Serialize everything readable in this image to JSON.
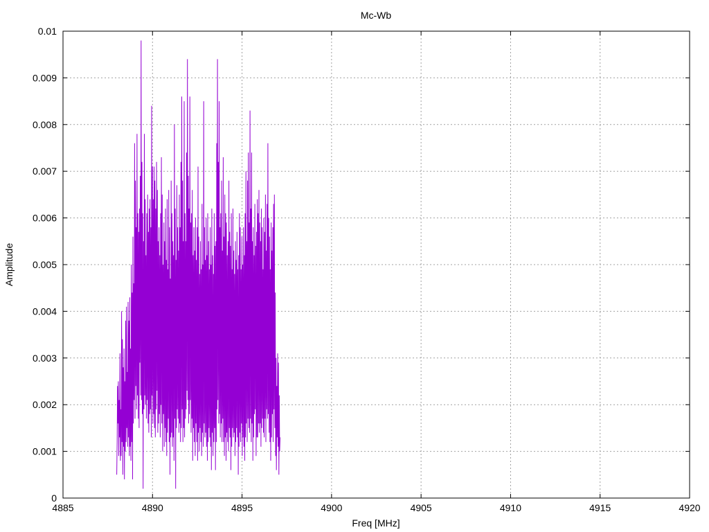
{
  "chart_data": {
    "type": "line",
    "title": "Mc-Wb",
    "xlabel": "Freq [MHz]",
    "ylabel": "Amplitude",
    "xlim": [
      4885,
      4920
    ],
    "ylim": [
      0,
      0.01
    ],
    "grid": true,
    "x_ticks": [
      "4885",
      "4890",
      "4895",
      "4900",
      "4905",
      "4910",
      "4915",
      "4920"
    ],
    "y_ticks": [
      "0",
      "0.001",
      "0.002",
      "0.003",
      "0.004",
      "0.005",
      "0.006",
      "0.007",
      "0.008",
      "0.009",
      "0.01"
    ],
    "series": [
      {
        "color": "#9400d3",
        "x_start": 4888.0,
        "x_step": 0.0227,
        "values": [
          0.0005,
          0.0012,
          0.0024,
          0.0016,
          0.0025,
          0.0009,
          0.0021,
          0.0013,
          0.0031,
          0.0008,
          0.0019,
          0.0009,
          0.004,
          0.0012,
          0.0034,
          0.0005,
          0.0028,
          0.0011,
          0.0032,
          0.0004,
          0.0025,
          0.001,
          0.0038,
          0.0012,
          0.0041,
          0.0015,
          0.0027,
          0.0011,
          0.0042,
          0.0013,
          0.0038,
          0.0009,
          0.0043,
          0.0011,
          0.0032,
          0.0008,
          0.005,
          0.0012,
          0.0044,
          0.0004,
          0.0056,
          0.0016,
          0.0046,
          0.0021,
          0.0076,
          0.0017,
          0.0068,
          0.0024,
          0.0058,
          0.0019,
          0.0078,
          0.0022,
          0.0061,
          0.0017,
          0.0057,
          0.0015,
          0.0062,
          0.0029,
          0.0069,
          0.0022,
          0.0098,
          0.0021,
          0.0072,
          0.0018,
          0.0061,
          0.0002,
          0.0055,
          0.0019,
          0.0078,
          0.0022,
          0.0064,
          0.002,
          0.0052,
          0.0017,
          0.0061,
          0.0021,
          0.0065,
          0.0016,
          0.0057,
          0.0014,
          0.0062,
          0.0018,
          0.0064,
          0.0019,
          0.0058,
          0.0013,
          0.0084,
          0.0022,
          0.0071,
          0.0016,
          0.0064,
          0.0018,
          0.0071,
          0.0015,
          0.0068,
          0.0013,
          0.0062,
          0.0019,
          0.0072,
          0.0023,
          0.0066,
          0.0014,
          0.0055,
          0.0016,
          0.0058,
          0.0018,
          0.0052,
          0.0013,
          0.0061,
          0.002,
          0.0073,
          0.0016,
          0.0065,
          0.001,
          0.005,
          0.0018,
          0.0059,
          0.0011,
          0.0055,
          0.0015,
          0.0062,
          0.0012,
          0.0051,
          0.0009,
          0.0064,
          0.0014,
          0.0049,
          0.0017,
          0.0066,
          0.0012,
          0.0058,
          0.0005,
          0.0047,
          0.0013,
          0.0068,
          0.0014,
          0.0061,
          0.0011,
          0.0055,
          0.0013,
          0.0052,
          0.0008,
          0.008,
          0.0017,
          0.0062,
          0.0002,
          0.0051,
          0.0015,
          0.0067,
          0.0019,
          0.0058,
          0.0017,
          0.0053,
          0.0014,
          0.0065,
          0.0016,
          0.0058,
          0.0012,
          0.0072,
          0.0015,
          0.0086,
          0.0019,
          0.0068,
          0.0012,
          0.0055,
          0.0015,
          0.0085,
          0.0013,
          0.0061,
          0.0017,
          0.0055,
          0.0019,
          0.0074,
          0.0023,
          0.0094,
          0.0021,
          0.0069,
          0.0016,
          0.0062,
          0.0018,
          0.0086,
          0.0021,
          0.0059,
          0.0014,
          0.0061,
          0.0017,
          0.0066,
          0.0008,
          0.0052,
          0.0015,
          0.0058,
          0.0012,
          0.0053,
          0.0009,
          0.006,
          0.0016,
          0.0051,
          0.0012,
          0.0058,
          0.0008,
          0.0071,
          0.0014,
          0.0056,
          0.001,
          0.0048,
          0.0015,
          0.0055,
          0.0012,
          0.0049,
          0.0009,
          0.0063,
          0.0014,
          0.005,
          0.0011,
          0.0085,
          0.0016,
          0.0058,
          0.0013,
          0.0051,
          0.0014,
          0.006,
          0.0011,
          0.0052,
          0.0008,
          0.0061,
          0.0012,
          0.0055,
          0.0015,
          0.0049,
          0.0013,
          0.0058,
          0.0011,
          0.005,
          0.0006,
          0.0062,
          0.0014,
          0.0052,
          0.0009,
          0.0048,
          0.0012,
          0.0061,
          0.0015,
          0.0054,
          0.0006,
          0.0055,
          0.0012,
          0.0076,
          0.0019,
          0.0094,
          0.0021,
          0.0072,
          0.0016,
          0.0085,
          0.0018,
          0.0058,
          0.0013,
          0.0061,
          0.0016,
          0.0068,
          0.0012,
          0.0053,
          0.0017,
          0.0073,
          0.0012,
          0.0056,
          0.0009,
          0.0065,
          0.0013,
          0.0061,
          0.0008,
          0.0059,
          0.0014,
          0.0052,
          0.0012,
          0.0055,
          0.001,
          0.0068,
          0.0015,
          0.0057,
          0.0013,
          0.0054,
          0.0006,
          0.0061,
          0.0011,
          0.0049,
          0.0015,
          0.0062,
          0.0013,
          0.0053,
          0.0014,
          0.0048,
          0.0009,
          0.0055,
          0.0012,
          0.0051,
          0.0015,
          0.0057,
          0.0013,
          0.0049,
          0.0005,
          0.0052,
          0.0011,
          0.0061,
          0.0014,
          0.0058,
          0.0012,
          0.0049,
          0.0016,
          0.0056,
          0.0009,
          0.005,
          0.0013,
          0.0058,
          0.0011,
          0.0052,
          0.0008,
          0.0061,
          0.0013,
          0.007,
          0.0016,
          0.0055,
          0.0012,
          0.0068,
          0.0017,
          0.0074,
          0.0015,
          0.0059,
          0.0014,
          0.0083,
          0.0017,
          0.0062,
          0.0012,
          0.0074,
          0.0016,
          0.0055,
          0.0008,
          0.0058,
          0.0013,
          0.0052,
          0.0018,
          0.0063,
          0.0019,
          0.0054,
          0.0009,
          0.0057,
          0.0013,
          0.0064,
          0.0013,
          0.0061,
          0.0016,
          0.0066,
          0.0014,
          0.0059,
          0.0016,
          0.0055,
          0.0011,
          0.0062,
          0.0015,
          0.0058,
          0.0017,
          0.0049,
          0.0014,
          0.006,
          0.0013,
          0.0057,
          0.0017,
          0.0065,
          0.0012,
          0.0053,
          0.0019,
          0.0063,
          0.0017,
          0.0076,
          0.0018,
          0.006,
          0.0014,
          0.0056,
          0.0012,
          0.0049,
          0.0008,
          0.0059,
          0.0013,
          0.0053,
          0.0018,
          0.0058,
          0.0012,
          0.0063,
          0.0019,
          0.0065,
          0.0015,
          0.0044,
          0.0009,
          0.003,
          0.0006,
          0.0024,
          0.0013,
          0.0031,
          0.0011,
          0.0029,
          0.0005,
          0.0022,
          0.001,
          0.0013
        ]
      }
    ]
  }
}
